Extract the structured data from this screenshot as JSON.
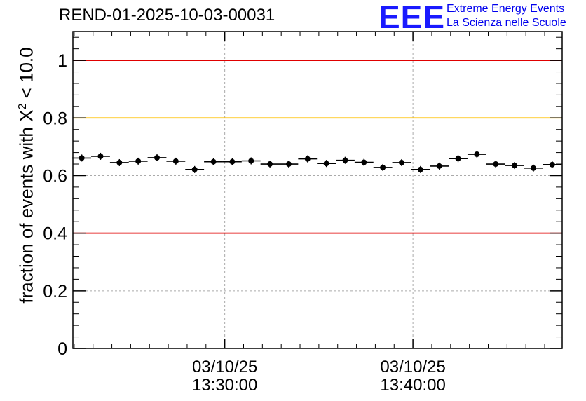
{
  "header": {
    "title": "REND-01-2025-10-03-00031"
  },
  "logo": {
    "mark": "EEE",
    "line1": "Extreme Energy Events",
    "line2": "La Scienza nelle Scuole"
  },
  "chart_data": {
    "type": "scatter",
    "title": "REND-01-2025-10-03-00031",
    "ylabel_prefix": "fraction of events with ",
    "ylabel_symbol": "X",
    "ylabel_sup": "2",
    "ylabel_suffix": " < 10.0",
    "ylim": [
      0,
      1.1
    ],
    "yticks": [
      {
        "value": 0,
        "label": "0"
      },
      {
        "value": 0.2,
        "label": "0.2"
      },
      {
        "value": 0.4,
        "label": "0.4"
      },
      {
        "value": 0.6,
        "label": "0.6"
      },
      {
        "value": 0.8,
        "label": "0.8"
      },
      {
        "value": 1,
        "label": "1"
      }
    ],
    "xlim_minutes": [
      -8.07,
      17.93
    ],
    "xticks": [
      {
        "minute": 0,
        "date": "03/10/25",
        "time": "13:30:00"
      },
      {
        "minute": 10,
        "date": "03/10/25",
        "time": "13:40:00"
      }
    ],
    "reference_lines": [
      {
        "value": 1.0,
        "color": "#e00000"
      },
      {
        "value": 0.8,
        "color": "#ffc000"
      },
      {
        "value": 0.4,
        "color": "#e00000"
      }
    ],
    "bin_width_minutes": 1.0,
    "points": [
      {
        "x": -7.6,
        "y": 0.661
      },
      {
        "x": -6.6,
        "y": 0.667
      },
      {
        "x": -5.6,
        "y": 0.645
      },
      {
        "x": -4.6,
        "y": 0.65
      },
      {
        "x": -3.6,
        "y": 0.662
      },
      {
        "x": -2.6,
        "y": 0.65
      },
      {
        "x": -1.6,
        "y": 0.621
      },
      {
        "x": -0.6,
        "y": 0.648
      },
      {
        "x": 0.4,
        "y": 0.648
      },
      {
        "x": 1.4,
        "y": 0.651
      },
      {
        "x": 2.4,
        "y": 0.64
      },
      {
        "x": 3.4,
        "y": 0.64
      },
      {
        "x": 4.4,
        "y": 0.658
      },
      {
        "x": 5.4,
        "y": 0.642
      },
      {
        "x": 6.4,
        "y": 0.653
      },
      {
        "x": 7.4,
        "y": 0.646
      },
      {
        "x": 8.4,
        "y": 0.628
      },
      {
        "x": 9.4,
        "y": 0.645
      },
      {
        "x": 10.4,
        "y": 0.621
      },
      {
        "x": 11.4,
        "y": 0.633
      },
      {
        "x": 12.4,
        "y": 0.659
      },
      {
        "x": 13.4,
        "y": 0.674
      },
      {
        "x": 14.4,
        "y": 0.64
      },
      {
        "x": 15.4,
        "y": 0.635
      },
      {
        "x": 16.4,
        "y": 0.626
      },
      {
        "x": 17.4,
        "y": 0.638
      }
    ],
    "grid": true
  }
}
